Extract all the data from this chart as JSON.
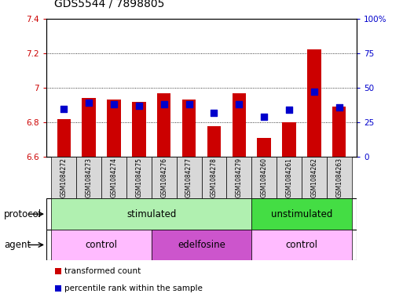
{
  "title": "GDS5544 / 7898805",
  "samples": [
    "GSM1084272",
    "GSM1084273",
    "GSM1084274",
    "GSM1084275",
    "GSM1084276",
    "GSM1084277",
    "GSM1084278",
    "GSM1084279",
    "GSM1084260",
    "GSM1084261",
    "GSM1084262",
    "GSM1084263"
  ],
  "bar_values": [
    6.82,
    6.94,
    6.93,
    6.92,
    6.97,
    6.93,
    6.78,
    6.97,
    6.71,
    6.8,
    7.22,
    6.89
  ],
  "percentile_values": [
    35,
    39,
    38,
    37,
    38,
    38,
    32,
    38,
    29,
    34,
    47,
    36
  ],
  "bar_base": 6.6,
  "ylim_left": [
    6.6,
    7.4
  ],
  "ylim_right": [
    0,
    100
  ],
  "yticks_left": [
    6.6,
    6.8,
    7.0,
    7.2,
    7.4
  ],
  "ytick_labels_left": [
    "6.6",
    "6.8",
    "7",
    "7.2",
    "7.4"
  ],
  "yticks_right": [
    0,
    25,
    50,
    75,
    100
  ],
  "ytick_labels_right": [
    "0",
    "25",
    "50",
    "75",
    "100%"
  ],
  "bar_color": "#cc0000",
  "dot_color": "#0000cc",
  "bg_color": "#ffffff",
  "protocol_groups": [
    {
      "label": "stimulated",
      "start": 0,
      "end": 7,
      "color": "#b0f0b0"
    },
    {
      "label": "unstimulated",
      "start": 8,
      "end": 11,
      "color": "#44dd44"
    }
  ],
  "agent_groups": [
    {
      "label": "control",
      "start": 0,
      "end": 3,
      "color": "#ffbbff"
    },
    {
      "label": "edelfosine",
      "start": 4,
      "end": 7,
      "color": "#cc55cc"
    },
    {
      "label": "control",
      "start": 8,
      "end": 11,
      "color": "#ffbbff"
    }
  ],
  "legend_items": [
    {
      "label": "transformed count",
      "color": "#cc0000"
    },
    {
      "label": "percentile rank within the sample",
      "color": "#0000cc"
    }
  ],
  "protocol_label": "protocol",
  "agent_label": "agent",
  "bar_width": 0.55,
  "dot_size": 28,
  "title_fontsize": 10,
  "tick_fontsize": 7.5,
  "sample_fontsize": 5.5,
  "row_fontsize": 8.5,
  "legend_fontsize": 7.5
}
